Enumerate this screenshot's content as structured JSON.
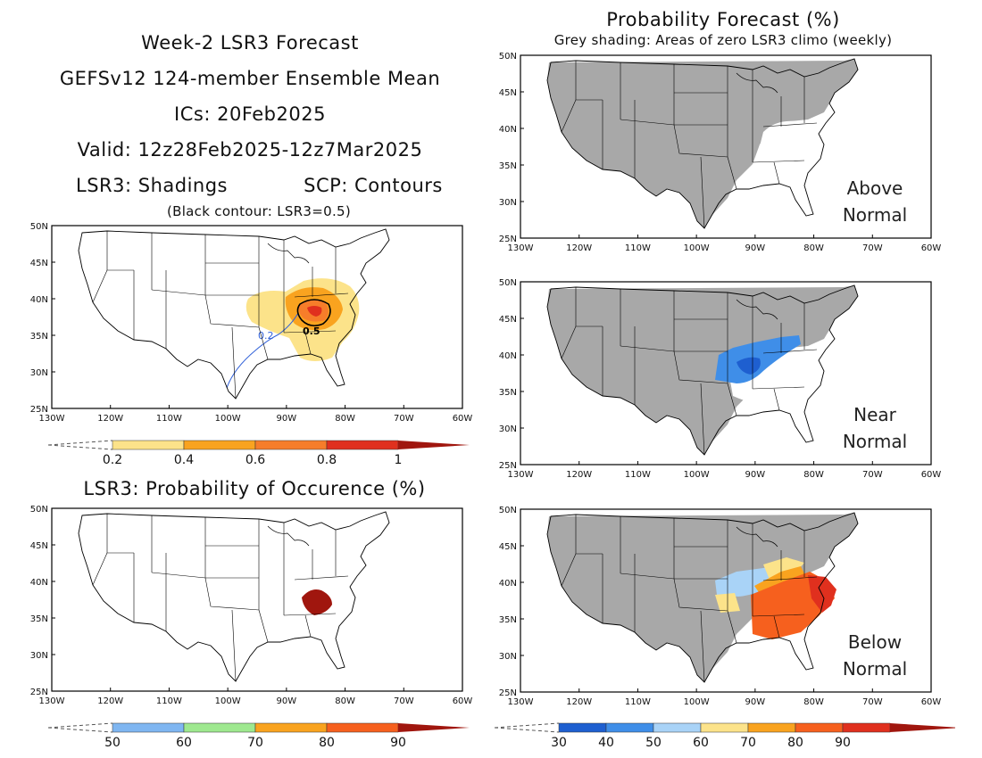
{
  "header": {
    "line1": "Week-2 LSR3 Forecast",
    "line2": "GEFSv12 124-member Ensemble Mean",
    "line3": "ICs: 20Feb2025",
    "line4": "Valid: 12z28Feb2025-12z7Mar2025",
    "line5_left": "LSR3: Shadings",
    "line5_right": "SCP: Contours",
    "line6": "(Black contour: LSR3=0.5)"
  },
  "right_header": {
    "title": "Probability Forecast (%)",
    "subtitle": "Grey shading: Areas of zero LSR3 climo (weekly)"
  },
  "lat_labels": [
    "50N",
    "45N",
    "40N",
    "35N",
    "30N",
    "25N"
  ],
  "lon_labels": [
    "130W",
    "120W",
    "110W",
    "100W",
    "90W",
    "80W",
    "70W",
    "60W"
  ],
  "maps": {
    "lsr3_mean": {
      "contour_labels": [
        "0.2",
        "0.5"
      ]
    },
    "occurrence": {
      "title": "LSR3: Probability of Occurence (%)"
    },
    "above": {
      "label_line1": "Above",
      "label_line2": "Normal"
    },
    "near": {
      "label_line1": "Near",
      "label_line2": "Normal"
    },
    "below": {
      "label_line1": "Below",
      "label_line2": "Normal"
    }
  },
  "colorbars": {
    "lsr3": {
      "labels": [
        "0.2",
        "0.4",
        "0.6",
        "0.8",
        "1"
      ],
      "colors": [
        "#fce38a",
        "#f9a31f",
        "#f67d2a",
        "#e0301e",
        "#a0160e"
      ]
    },
    "occurrence": {
      "labels": [
        "50",
        "60",
        "70",
        "80",
        "90"
      ],
      "colors": [
        "#7fb6f1",
        "#9ee88f",
        "#f9a31f",
        "#f6601e",
        "#a0160e"
      ]
    },
    "probability": {
      "labels": [
        "30",
        "40",
        "50",
        "60",
        "70",
        "80",
        "90"
      ],
      "colors": [
        "#1e5fd0",
        "#3f8ee8",
        "#a9d3f7",
        "#fce38a",
        "#f9a31f",
        "#f6601e",
        "#e0301e",
        "#a0160e"
      ]
    }
  },
  "colors": {
    "grey_climo": "#a8a8a8",
    "scp_contour": "#3060d8"
  }
}
